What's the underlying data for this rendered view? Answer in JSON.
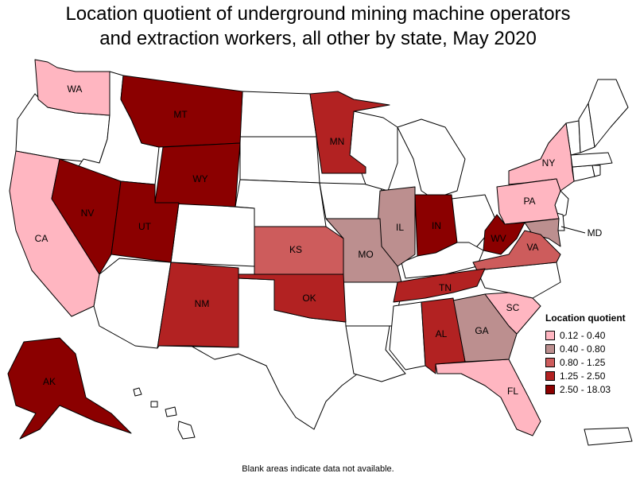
{
  "title_line1": "Location quotient of underground mining machine operators",
  "title_line2": "and extraction workers, all other by state, May 2020",
  "legend": {
    "title": "Location quotient",
    "ranges": [
      {
        "label": "0.12 - 0.40",
        "color": "#ffb6c1"
      },
      {
        "label": "0.40 - 0.80",
        "color": "#bc8f8f"
      },
      {
        "label": "0.80 - 1.25",
        "color": "#cd5c5c"
      },
      {
        "label": "1.25 - 2.50",
        "color": "#b22222"
      },
      {
        "label": "2.50 - 18.03",
        "color": "#8b0000"
      }
    ]
  },
  "no_data_color": "#ffffff",
  "footnote": "Blank areas indicate data not available.",
  "states": {
    "WA": {
      "label": "WA",
      "class": "0.12 - 0.40"
    },
    "CA": {
      "label": "CA",
      "class": "0.12 - 0.40"
    },
    "NY": {
      "label": "NY",
      "class": "0.12 - 0.40"
    },
    "PA": {
      "label": "PA",
      "class": "0.12 - 0.40"
    },
    "SC": {
      "label": "SC",
      "class": "0.12 - 0.40"
    },
    "FL": {
      "label": "FL",
      "class": "0.12 - 0.40"
    },
    "IL": {
      "label": "IL",
      "class": "0.40 - 0.80"
    },
    "MO": {
      "label": "MO",
      "class": "0.40 - 0.80"
    },
    "GA": {
      "label": "GA",
      "class": "0.40 - 0.80"
    },
    "MD": {
      "label": "MD",
      "class": "0.40 - 0.80"
    },
    "KS": {
      "label": "KS",
      "class": "0.80 - 1.25"
    },
    "VA": {
      "label": "VA",
      "class": "0.80 - 1.25"
    },
    "MN": {
      "label": "MN",
      "class": "1.25 - 2.50"
    },
    "NM": {
      "label": "NM",
      "class": "1.25 - 2.50"
    },
    "OK": {
      "label": "OK",
      "class": "1.25 - 2.50"
    },
    "TN": {
      "label": "TN",
      "class": "1.25 - 2.50"
    },
    "AL": {
      "label": "AL",
      "class": "1.25 - 2.50"
    },
    "MT": {
      "label": "MT",
      "class": "2.50 - 18.03"
    },
    "WY": {
      "label": "WY",
      "class": "2.50 - 18.03"
    },
    "NV": {
      "label": "NV",
      "class": "2.50 - 18.03"
    },
    "UT": {
      "label": "UT",
      "class": "2.50 - 18.03"
    },
    "IN": {
      "label": "IN",
      "class": "2.50 - 18.03"
    },
    "WV": {
      "label": "WV",
      "class": "2.50 - 18.03"
    },
    "AK": {
      "label": "AK",
      "class": "2.50 - 18.03"
    }
  }
}
